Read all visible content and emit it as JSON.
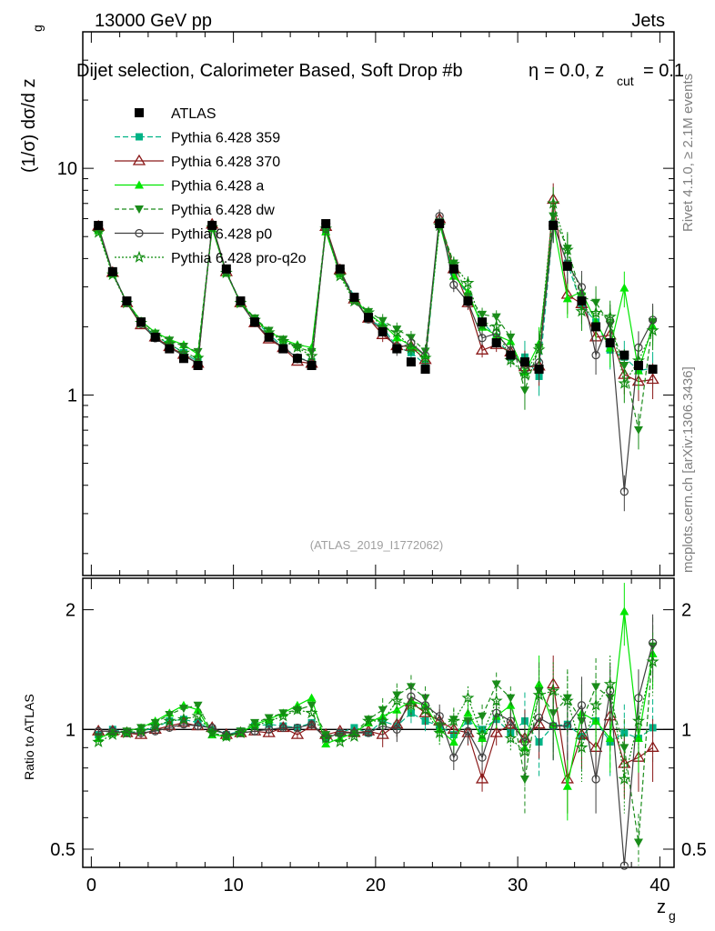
{
  "header": {
    "beam": "13000 GeV pp",
    "process": "Jets",
    "title": "Dijet selection, Calorimeter Based, Soft Drop #b",
    "cut_label": "= 0.0, z",
    "eta_symbol": "η",
    "cut_sub": "cut",
    "cut_value": "= 0.1",
    "side_rivet": "Rivet 4.1.0, ≥ 2.1M events",
    "side_site": "mcplots.cern.ch [arXiv:1306.3436]",
    "analysis_id": "(ATLAS_2019_I1772062)"
  },
  "colors": {
    "atlas": "#000000",
    "p359": "#00b386",
    "p370": "#8b1a1a",
    "pa": "#00e600",
    "pdw": "#1a8c1a",
    "pp0": "#404040",
    "pq2o": "#0f8c0f"
  },
  "chart_data": [
    {
      "type": "line",
      "panel": "main",
      "ylabel": "(1/σ) dσ/d z",
      "ylabel_sub": "g",
      "yscale": "log",
      "ylim": [
        0.16,
        40
      ],
      "xlim": [
        -0.6,
        41
      ],
      "yticks": [
        "1",
        "10"
      ],
      "x": [
        0.5,
        1.5,
        2.5,
        3.5,
        4.5,
        5.5,
        6.5,
        7.5,
        8.5,
        9.5,
        10.5,
        11.5,
        12.5,
        13.5,
        14.5,
        15.5,
        16.5,
        17.5,
        18.5,
        19.5,
        20.5,
        21.5,
        22.5,
        23.5,
        24.5,
        25.5,
        26.5,
        27.5,
        28.5,
        29.5,
        30.5,
        31.5,
        32.5,
        33.5,
        34.5,
        35.5,
        36.5,
        37.5,
        38.5,
        39.5
      ],
      "legend": [
        "ATLAS",
        "Pythia 6.428 359",
        "Pythia 6.428 370",
        "Pythia 6.428 a",
        "Pythia 6.428 dw",
        "Pythia 6.428 p0",
        "Pythia 6.428 pro-q2o"
      ],
      "reference": {
        "name": "ATLAS",
        "values": [
          5.6,
          3.5,
          2.6,
          2.1,
          1.8,
          1.6,
          1.45,
          1.35,
          5.6,
          3.6,
          2.6,
          2.1,
          1.8,
          1.6,
          1.45,
          1.35,
          5.7,
          3.6,
          2.7,
          2.2,
          1.9,
          1.6,
          1.4,
          1.3,
          5.7,
          3.6,
          2.6,
          2.1,
          1.7,
          1.5,
          1.4,
          1.3,
          5.6,
          3.7,
          2.6,
          2.0,
          1.7,
          1.5,
          1.35,
          1.3
        ]
      },
      "series_ratio": [
        {
          "name": "Pythia 6.428 359",
          "color_key": "p359",
          "dash": "6,3",
          "marker": "square",
          "values": [
            0.97,
            1.0,
            0.98,
            0.99,
            1.01,
            1.05,
            1.06,
            1.04,
            1.0,
            0.97,
            0.99,
            1.02,
            1.03,
            1.02,
            1.01,
            1.04,
            0.95,
            0.98,
            1.01,
            0.98,
            1.05,
            1.02,
            1.1,
            1.05,
            1.02,
            0.97,
            1.05,
            1.0,
            1.06,
            0.98,
            1.05,
            0.93,
            1.02,
            1.03,
            0.96,
            1.05,
            0.93,
            0.98,
            0.95,
            1.01
          ]
        },
        {
          "name": "Pythia 6.428 370",
          "color_key": "p370",
          "dash": "",
          "marker": "open-triangle",
          "values": [
            0.99,
            0.99,
            0.98,
            0.97,
            1.0,
            1.02,
            1.04,
            1.02,
            1.01,
            0.97,
            0.98,
            0.99,
            0.98,
            1.01,
            0.97,
            1.02,
            0.97,
            0.99,
            0.98,
            0.99,
            0.97,
            1.03,
            1.17,
            1.1,
            1.05,
            1.0,
            0.98,
            0.75,
            0.98,
            1.03,
            0.95,
            1.03,
            1.3,
            0.75,
            0.97,
            0.9,
            1.08,
            0.82,
            0.85,
            0.9
          ]
        },
        {
          "name": "Pythia 6.428 a",
          "color_key": "pa",
          "dash": "",
          "marker": "triangle",
          "values": [
            0.95,
            0.98,
            0.99,
            1.01,
            1.05,
            1.1,
            1.15,
            1.12,
            0.97,
            0.96,
            0.98,
            1.03,
            1.06,
            1.1,
            1.15,
            1.2,
            0.92,
            0.95,
            0.98,
            1.04,
            1.08,
            1.12,
            1.18,
            1.15,
            1.0,
            0.93,
            1.1,
            0.95,
            1.08,
            1.15,
            0.9,
            1.3,
            1.03,
            0.72,
            1.1,
            1.05,
            0.95,
            1.98,
            0.95,
            1.55
          ]
        },
        {
          "name": "Pythia 6.428 dw",
          "color_key": "pdw",
          "dash": "5,3",
          "marker": "down-triangle",
          "values": [
            0.96,
            0.98,
            0.99,
            1.01,
            1.04,
            1.09,
            1.13,
            1.15,
            0.98,
            0.96,
            0.99,
            1.04,
            1.07,
            1.1,
            1.12,
            1.15,
            0.97,
            0.96,
            0.98,
            1.06,
            1.12,
            1.22,
            1.28,
            1.2,
            1.02,
            1.06,
            1.05,
            1.08,
            1.3,
            1.2,
            0.75,
            1.25,
            1.1,
            1.2,
            1.05,
            1.28,
            1.2,
            0.9,
            0.52,
            1.62
          ]
        },
        {
          "name": "Pythia 6.428 p0",
          "color_key": "pp0",
          "dash": "",
          "marker": "open-circle",
          "values": [
            0.99,
            0.99,
            0.98,
            0.98,
            0.99,
            1.01,
            1.03,
            1.02,
            1.01,
            0.97,
            0.98,
            0.99,
            1.0,
            1.01,
            1.01,
            1.03,
            0.95,
            0.98,
            0.98,
            0.98,
            1.02,
            1.0,
            1.21,
            1.15,
            1.08,
            0.85,
            0.99,
            0.85,
            1.1,
            1.05,
            0.93,
            1.07,
            1.02,
            1.02,
            1.15,
            0.75,
            1.25,
            0.25,
            1.2,
            1.65
          ]
        },
        {
          "name": "Pythia 6.428 pro-q2o",
          "color_key": "pq2o",
          "dash": "2,2",
          "marker": "star",
          "values": [
            0.93,
            0.97,
            0.98,
            0.99,
            1.02,
            1.05,
            1.06,
            1.08,
            0.98,
            0.96,
            0.98,
            1.02,
            1.05,
            1.08,
            1.12,
            1.1,
            0.95,
            0.93,
            0.96,
            1.05,
            1.05,
            1.18,
            1.15,
            1.12,
            0.98,
            1.05,
            1.2,
            0.97,
            1.18,
            0.95,
            0.88,
            1.22,
            1.25,
            1.18,
            0.9,
            1.15,
            1.3,
            0.75,
            1.05,
            1.48
          ]
        }
      ]
    },
    {
      "type": "line",
      "panel": "ratio",
      "xlabel": "z",
      "xlabel_sub": "g",
      "ylabel": "Ratio to ATLAS",
      "yscale": "log",
      "ylim": [
        0.45,
        2.4
      ],
      "yticks": [
        "0.5",
        "1",
        "2"
      ],
      "xticks": [
        "0",
        "10",
        "20",
        "30",
        "40"
      ]
    }
  ]
}
